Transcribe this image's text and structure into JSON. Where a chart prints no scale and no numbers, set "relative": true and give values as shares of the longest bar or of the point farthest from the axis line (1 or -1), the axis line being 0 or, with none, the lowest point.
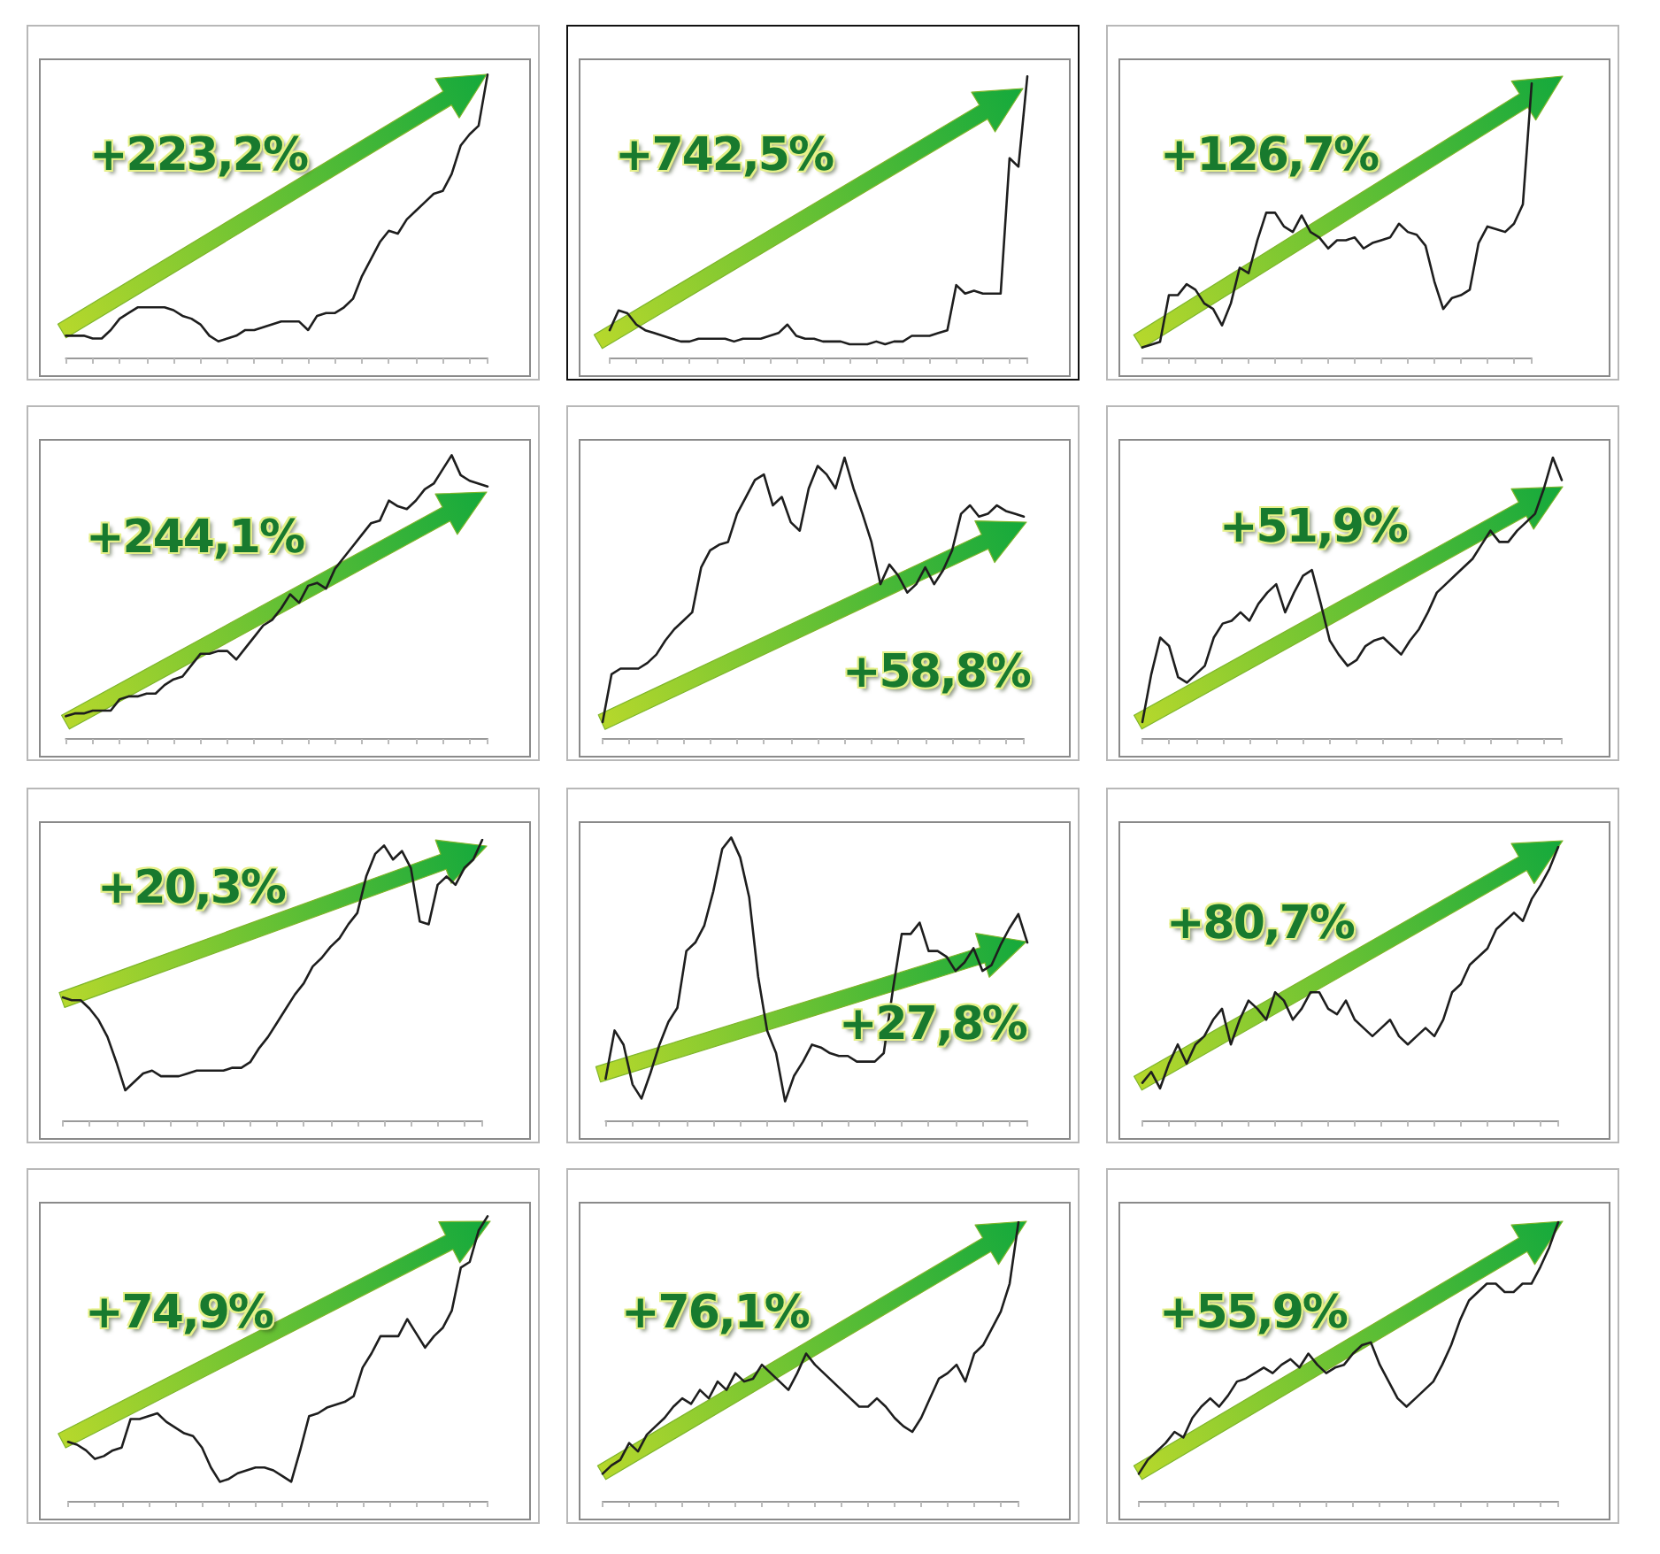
{
  "chart_data": [
    {
      "type": "line",
      "relative": true,
      "color": "#1e1e1e",
      "annotations": [
        "+223,2%"
      ],
      "categories": [
        null,
        null,
        null,
        null,
        null,
        null,
        null,
        null,
        null,
        null,
        null,
        null,
        null,
        null,
        null,
        null,
        null,
        null,
        null,
        null,
        null,
        null,
        null,
        null,
        null,
        null,
        null,
        null,
        null,
        null,
        null,
        null,
        null,
        null,
        null,
        null,
        null,
        null,
        null,
        null,
        null,
        null,
        null,
        null,
        null,
        null,
        null,
        null
      ],
      "values": [
        0.08,
        0.08,
        0.08,
        0.07,
        0.07,
        0.1,
        0.14,
        0.16,
        0.18,
        0.18,
        0.18,
        0.18,
        0.17,
        0.15,
        0.14,
        0.12,
        0.08,
        0.06,
        0.07,
        0.08,
        0.1,
        0.1,
        0.11,
        0.12,
        0.13,
        0.13,
        0.13,
        0.1,
        0.15,
        0.16,
        0.16,
        0.18,
        0.21,
        0.29,
        0.35,
        0.41,
        0.45,
        0.44,
        0.49,
        0.52,
        0.55,
        0.58,
        0.59,
        0.65,
        0.75,
        0.79,
        0.82,
        1
      ]
    },
    {
      "type": "line",
      "relative": true,
      "color": "#1e1e1e",
      "annotations": [
        "+742,5%"
      ],
      "categories": [
        null,
        null,
        null,
        null,
        null,
        null,
        null,
        null,
        null,
        null,
        null,
        null,
        null,
        null,
        null,
        null,
        null,
        null,
        null,
        null,
        null,
        null,
        null,
        null,
        null,
        null,
        null,
        null,
        null,
        null,
        null,
        null,
        null,
        null,
        null,
        null,
        null,
        null,
        null,
        null,
        null,
        null,
        null,
        null,
        null,
        null,
        null,
        null
      ],
      "values": [
        0.1,
        0.17,
        0.16,
        0.12,
        0.1,
        0.09,
        0.08,
        0.07,
        0.06,
        0.06,
        0.07,
        0.07,
        0.07,
        0.07,
        0.06,
        0.07,
        0.07,
        0.07,
        0.08,
        0.09,
        0.12,
        0.08,
        0.07,
        0.07,
        0.06,
        0.06,
        0.06,
        0.05,
        0.05,
        0.05,
        0.06,
        0.05,
        0.06,
        0.06,
        0.08,
        0.08,
        0.08,
        0.09,
        0.1,
        0.26,
        0.23,
        0.24,
        0.23,
        0.23,
        0.23,
        0.71,
        0.68,
        1
      ]
    },
    {
      "type": "line",
      "relative": true,
      "color": "#1e1e1e",
      "annotations": [
        "+126,7%"
      ],
      "categories": [
        null,
        null,
        null,
        null,
        null,
        null,
        null,
        null,
        null,
        null,
        null,
        null,
        null,
        null,
        null,
        null,
        null,
        null,
        null,
        null,
        null,
        null,
        null,
        null,
        null,
        null,
        null,
        null,
        null,
        null,
        null,
        null,
        null,
        null,
        null,
        null,
        null,
        null,
        null,
        null,
        null,
        null,
        null,
        null,
        null
      ],
      "values": [
        0.04,
        0.05,
        0.06,
        0.23,
        0.23,
        0.27,
        0.25,
        0.2,
        0.18,
        0.12,
        0.2,
        0.33,
        0.31,
        0.43,
        0.53,
        0.53,
        0.48,
        0.46,
        0.52,
        0.46,
        0.44,
        0.4,
        0.43,
        0.43,
        0.44,
        0.4,
        0.42,
        0.43,
        0.44,
        0.49,
        0.46,
        0.45,
        0.41,
        0.28,
        0.18,
        0.22,
        0.23,
        0.25,
        0.42,
        0.48,
        0.47,
        0.46,
        0.49,
        0.56,
        1
      ]
    },
    {
      "type": "line",
      "relative": true,
      "color": "#1e1e1e",
      "annotations": [
        "+244,1%"
      ],
      "categories": [
        null,
        null,
        null,
        null,
        null,
        null,
        null,
        null,
        null,
        null,
        null,
        null,
        null,
        null,
        null,
        null,
        null,
        null,
        null,
        null,
        null,
        null,
        null,
        null,
        null,
        null,
        null,
        null,
        null,
        null,
        null,
        null,
        null,
        null,
        null,
        null,
        null,
        null,
        null,
        null,
        null,
        null,
        null,
        null,
        null,
        null,
        null,
        null
      ],
      "values": [
        0.08,
        0.09,
        0.09,
        0.1,
        0.1,
        0.1,
        0.14,
        0.15,
        0.15,
        0.16,
        0.16,
        0.19,
        0.21,
        0.22,
        0.26,
        0.3,
        0.3,
        0.31,
        0.31,
        0.28,
        0.32,
        0.36,
        0.4,
        0.42,
        0.46,
        0.51,
        0.48,
        0.54,
        0.55,
        0.53,
        0.6,
        0.64,
        0.68,
        0.72,
        0.76,
        0.77,
        0.84,
        0.82,
        0.81,
        0.84,
        0.88,
        0.9,
        0.95,
        1,
        0.93,
        0.91,
        0.9,
        0.89
      ]
    },
    {
      "type": "line",
      "relative": true,
      "color": "#1e1e1e",
      "annotations": [
        "+58,8%"
      ],
      "categories": [
        null,
        null,
        null,
        null,
        null,
        null,
        null,
        null,
        null,
        null,
        null,
        null,
        null,
        null,
        null,
        null,
        null,
        null,
        null,
        null,
        null,
        null,
        null,
        null,
        null,
        null,
        null,
        null,
        null,
        null,
        null,
        null,
        null,
        null,
        null,
        null,
        null,
        null,
        null,
        null,
        null,
        null,
        null,
        null,
        null,
        null,
        null,
        null
      ],
      "values": [
        0.06,
        0.23,
        0.25,
        0.25,
        0.25,
        0.27,
        0.3,
        0.35,
        0.39,
        0.42,
        0.45,
        0.61,
        0.67,
        0.69,
        0.7,
        0.8,
        0.86,
        0.92,
        0.94,
        0.83,
        0.86,
        0.77,
        0.74,
        0.89,
        0.97,
        0.94,
        0.89,
        1,
        0.89,
        0.8,
        0.7,
        0.55,
        0.62,
        0.58,
        0.52,
        0.55,
        0.61,
        0.55,
        0.6,
        0.67,
        0.8,
        0.83,
        0.79,
        0.8,
        0.83,
        0.81,
        0.8,
        0.79
      ]
    },
    {
      "type": "line",
      "relative": true,
      "color": "#1e1e1e",
      "annotations": [
        "+51,9%"
      ],
      "categories": [
        null,
        null,
        null,
        null,
        null,
        null,
        null,
        null,
        null,
        null,
        null,
        null,
        null,
        null,
        null,
        null,
        null,
        null,
        null,
        null,
        null,
        null,
        null,
        null,
        null,
        null,
        null,
        null,
        null,
        null,
        null,
        null,
        null,
        null,
        null,
        null,
        null,
        null,
        null,
        null,
        null,
        null,
        null,
        null,
        null,
        null,
        null,
        null
      ],
      "values": [
        0.06,
        0.23,
        0.36,
        0.33,
        0.22,
        0.2,
        0.23,
        0.26,
        0.36,
        0.41,
        0.42,
        0.45,
        0.42,
        0.48,
        0.52,
        0.55,
        0.45,
        0.52,
        0.58,
        0.6,
        0.48,
        0.35,
        0.3,
        0.26,
        0.28,
        0.33,
        0.35,
        0.36,
        0.33,
        0.3,
        0.35,
        0.39,
        0.45,
        0.52,
        0.55,
        0.58,
        0.61,
        0.64,
        0.69,
        0.74,
        0.7,
        0.7,
        0.74,
        0.77,
        0.8,
        0.89,
        1,
        0.92
      ]
    },
    {
      "type": "line",
      "relative": true,
      "color": "#1e1e1e",
      "annotations": [
        "+20,3%"
      ],
      "categories": [
        null,
        null,
        null,
        null,
        null,
        null,
        null,
        null,
        null,
        null,
        null,
        null,
        null,
        null,
        null,
        null,
        null,
        null,
        null,
        null,
        null,
        null,
        null,
        null,
        null,
        null,
        null,
        null,
        null,
        null,
        null,
        null,
        null,
        null,
        null,
        null,
        null,
        null,
        null,
        null,
        null,
        null,
        null,
        null,
        null,
        null,
        null,
        null
      ],
      "values": [
        0.44,
        0.43,
        0.43,
        0.4,
        0.36,
        0.3,
        0.21,
        0.11,
        0.14,
        0.17,
        0.18,
        0.16,
        0.16,
        0.16,
        0.17,
        0.18,
        0.18,
        0.18,
        0.18,
        0.19,
        0.19,
        0.21,
        0.26,
        0.3,
        0.35,
        0.4,
        0.45,
        0.49,
        0.55,
        0.58,
        0.62,
        0.65,
        0.7,
        0.74,
        0.87,
        0.95,
        0.98,
        0.93,
        0.96,
        0.9,
        0.71,
        0.7,
        0.84,
        0.87,
        0.84,
        0.9,
        0.93,
        1
      ]
    },
    {
      "type": "line",
      "relative": true,
      "color": "#1e1e1e",
      "annotations": [
        "+27,8%"
      ],
      "categories": [
        null,
        null,
        null,
        null,
        null,
        null,
        null,
        null,
        null,
        null,
        null,
        null,
        null,
        null,
        null,
        null,
        null,
        null,
        null,
        null,
        null,
        null,
        null,
        null,
        null,
        null,
        null,
        null,
        null,
        null,
        null,
        null,
        null,
        null,
        null,
        null,
        null,
        null,
        null,
        null,
        null,
        null,
        null,
        null,
        null,
        null,
        null,
        null
      ],
      "values": [
        0.15,
        0.32,
        0.27,
        0.13,
        0.08,
        0.17,
        0.27,
        0.35,
        0.4,
        0.6,
        0.63,
        0.69,
        0.81,
        0.96,
        1,
        0.93,
        0.79,
        0.51,
        0.32,
        0.24,
        0.07,
        0.16,
        0.21,
        0.27,
        0.26,
        0.24,
        0.23,
        0.23,
        0.21,
        0.21,
        0.21,
        0.24,
        0.46,
        0.66,
        0.66,
        0.7,
        0.6,
        0.6,
        0.58,
        0.53,
        0.56,
        0.61,
        0.53,
        0.55,
        0.62,
        0.68,
        0.73,
        0.63
      ]
    },
    {
      "type": "line",
      "relative": true,
      "color": "#1e1e1e",
      "annotations": [
        "+80,7%"
      ],
      "categories": [
        null,
        null,
        null,
        null,
        null,
        null,
        null,
        null,
        null,
        null,
        null,
        null,
        null,
        null,
        null,
        null,
        null,
        null,
        null,
        null,
        null,
        null,
        null,
        null,
        null,
        null,
        null,
        null,
        null,
        null,
        null,
        null,
        null,
        null,
        null,
        null,
        null,
        null,
        null,
        null,
        null,
        null,
        null,
        null,
        null,
        null,
        null,
        null
      ],
      "values": [
        0.14,
        0.18,
        0.12,
        0.21,
        0.28,
        0.21,
        0.28,
        0.31,
        0.37,
        0.41,
        0.28,
        0.37,
        0.44,
        0.41,
        0.37,
        0.47,
        0.44,
        0.37,
        0.41,
        0.47,
        0.47,
        0.41,
        0.39,
        0.44,
        0.37,
        0.34,
        0.31,
        0.34,
        0.37,
        0.31,
        0.28,
        0.31,
        0.34,
        0.31,
        0.37,
        0.47,
        0.5,
        0.57,
        0.6,
        0.63,
        0.7,
        0.73,
        0.76,
        0.73,
        0.81,
        0.86,
        0.92,
        1
      ]
    },
    {
      "type": "line",
      "relative": true,
      "color": "#1e1e1e",
      "annotations": [
        "+74,9%"
      ],
      "categories": [
        null,
        null,
        null,
        null,
        null,
        null,
        null,
        null,
        null,
        null,
        null,
        null,
        null,
        null,
        null,
        null,
        null,
        null,
        null,
        null,
        null,
        null,
        null,
        null,
        null,
        null,
        null,
        null,
        null,
        null,
        null,
        null,
        null,
        null,
        null,
        null,
        null,
        null,
        null,
        null,
        null,
        null,
        null,
        null,
        null,
        null,
        null,
        null
      ],
      "values": [
        0.21,
        0.2,
        0.18,
        0.15,
        0.16,
        0.18,
        0.19,
        0.29,
        0.29,
        0.3,
        0.31,
        0.28,
        0.26,
        0.24,
        0.23,
        0.19,
        0.12,
        0.07,
        0.08,
        0.1,
        0.11,
        0.12,
        0.12,
        0.11,
        0.09,
        0.07,
        0.18,
        0.3,
        0.31,
        0.33,
        0.34,
        0.35,
        0.37,
        0.47,
        0.52,
        0.58,
        0.58,
        0.58,
        0.64,
        0.59,
        0.54,
        0.58,
        0.61,
        0.67,
        0.82,
        0.84,
        0.95,
        1
      ]
    },
    {
      "type": "line",
      "relative": true,
      "color": "#1e1e1e",
      "annotations": [
        "+76,1%"
      ],
      "categories": [
        null,
        null,
        null,
        null,
        null,
        null,
        null,
        null,
        null,
        null,
        null,
        null,
        null,
        null,
        null,
        null,
        null,
        null,
        null,
        null,
        null,
        null,
        null,
        null,
        null,
        null,
        null,
        null,
        null,
        null,
        null,
        null,
        null,
        null,
        null,
        null,
        null,
        null,
        null,
        null,
        null,
        null,
        null,
        null,
        null,
        null,
        null,
        null
      ],
      "values": [
        0.1,
        0.13,
        0.15,
        0.21,
        0.18,
        0.24,
        0.27,
        0.3,
        0.34,
        0.37,
        0.35,
        0.4,
        0.37,
        0.43,
        0.4,
        0.46,
        0.43,
        0.44,
        0.49,
        0.46,
        0.43,
        0.4,
        0.46,
        0.53,
        0.49,
        0.46,
        0.43,
        0.4,
        0.37,
        0.34,
        0.34,
        0.37,
        0.34,
        0.3,
        0.27,
        0.25,
        0.3,
        0.37,
        0.44,
        0.46,
        0.49,
        0.43,
        0.53,
        0.56,
        0.62,
        0.68,
        0.78,
        1
      ]
    },
    {
      "type": "line",
      "relative": true,
      "color": "#1e1e1e",
      "annotations": [
        "+55,9%"
      ],
      "categories": [
        null,
        null,
        null,
        null,
        null,
        null,
        null,
        null,
        null,
        null,
        null,
        null,
        null,
        null,
        null,
        null,
        null,
        null,
        null,
        null,
        null,
        null,
        null,
        null,
        null,
        null,
        null,
        null,
        null,
        null,
        null,
        null,
        null,
        null,
        null,
        null,
        null,
        null,
        null,
        null,
        null,
        null,
        null,
        null,
        null,
        null,
        null,
        null
      ],
      "values": [
        0.1,
        0.15,
        0.18,
        0.21,
        0.25,
        0.23,
        0.3,
        0.34,
        0.37,
        0.34,
        0.38,
        0.43,
        0.44,
        0.46,
        0.48,
        0.46,
        0.49,
        0.51,
        0.48,
        0.53,
        0.49,
        0.46,
        0.48,
        0.49,
        0.53,
        0.56,
        0.57,
        0.49,
        0.43,
        0.37,
        0.34,
        0.37,
        0.4,
        0.43,
        0.49,
        0.56,
        0.65,
        0.72,
        0.75,
        0.78,
        0.78,
        0.75,
        0.75,
        0.78,
        0.78,
        0.84,
        0.91,
        1
      ]
    }
  ]
}
